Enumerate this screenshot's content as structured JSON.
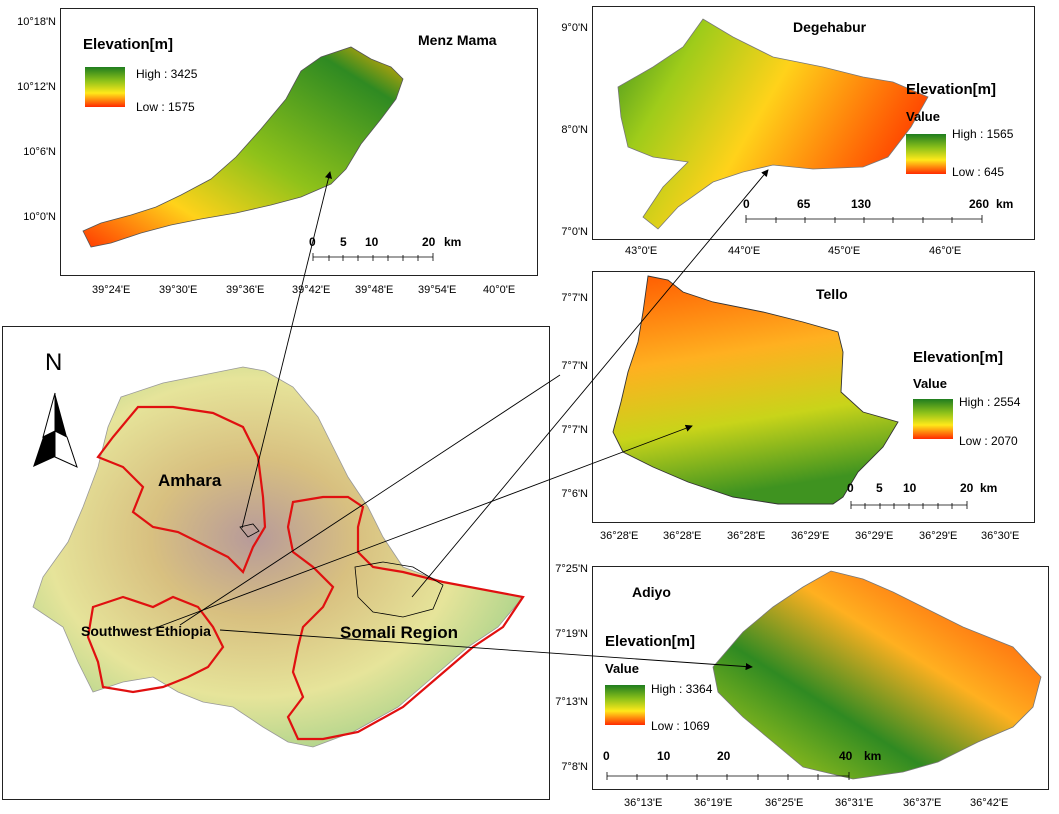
{
  "colors": {
    "high": "#1f7d1f",
    "mid": "#ffe91a",
    "low": "#ff2a00",
    "boundary": "#e01010"
  },
  "overview": {
    "north": "N",
    "regions": [
      "Amhara",
      "Southwest Ethiopia",
      "Somali Region"
    ]
  },
  "menz": {
    "title": "Menz Mama",
    "legend_title": "Elevation[m]",
    "high": "High : 3425",
    "low": "Low : 1575",
    "lat_ticks": [
      "10°18'N",
      "10°12'N",
      "10°6'N",
      "10°0'N"
    ],
    "lon_ticks": [
      "39°24'E",
      "39°30'E",
      "39°36'E",
      "39°42'E",
      "39°48'E",
      "39°54'E",
      "40°0'E"
    ],
    "scale": [
      "0",
      "5",
      "10",
      "20",
      "km"
    ]
  },
  "dege": {
    "title": "Degehabur",
    "legend_title": "Elevation[m]",
    "legend_sub": "Value",
    "high": "High : 1565",
    "low": "Low : 645",
    "lat_ticks": [
      "9°0'N",
      "8°0'N",
      "7°0'N"
    ],
    "lon_ticks": [
      "43°0'E",
      "44°0'E",
      "45°0'E",
      "46°0'E"
    ],
    "scale": [
      "0",
      "65",
      "130",
      "260",
      "km"
    ]
  },
  "tello": {
    "title": "Tello",
    "legend_title": "Elevation[m]",
    "legend_sub": "Value",
    "high": "High : 2554",
    "low": "Low : 2070",
    "lat_ticks": [
      "7°7'N",
      "7°7'N",
      "7°7'N",
      "7°6'N"
    ],
    "lon_ticks": [
      "36°28'E",
      "36°28'E",
      "36°28'E",
      "36°29'E",
      "36°29'E",
      "36°29'E",
      "36°30'E"
    ],
    "scale": [
      "0",
      "5",
      "10",
      "20",
      "km"
    ]
  },
  "adiyo": {
    "title": "Adiyo",
    "legend_title": "Elevation[m]",
    "legend_sub": "Value",
    "high": "High : 3364",
    "low": "Low : 1069",
    "lat_ticks": [
      "7°25'N",
      "7°19'N",
      "7°13'N",
      "7°8'N"
    ],
    "lon_ticks": [
      "36°13'E",
      "36°19'E",
      "36°25'E",
      "36°31'E",
      "36°37'E",
      "36°42'E"
    ],
    "scale": [
      "0",
      "10",
      "20",
      "40",
      "km"
    ]
  }
}
